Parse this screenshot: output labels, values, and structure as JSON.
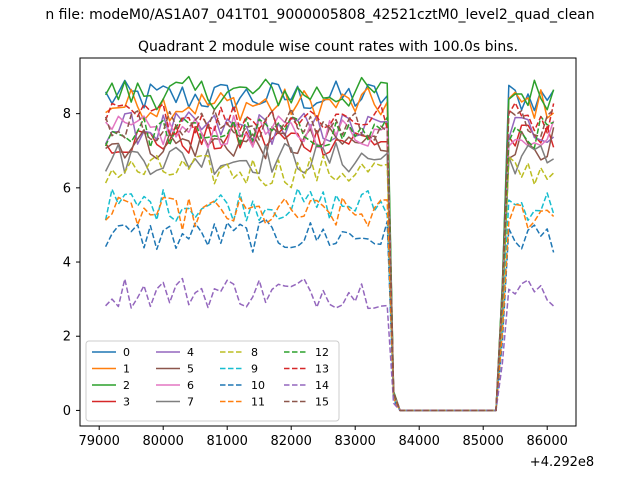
{
  "figure": {
    "suptitle": "n file: modeM0/AS1A07_041T01_9000005808_42521cztM0_level2_quad_clean",
    "x_offset_label": "+4.292e8"
  },
  "chart_data": {
    "type": "line",
    "title": "Quadrant 2 module wise count rates with 100.0s bins.",
    "xlabel": "",
    "ylabel": "",
    "xlim": [
      78700,
      86450
    ],
    "ylim": [
      -0.42,
      9.5
    ],
    "xticks": [
      "79000",
      "80000",
      "81000",
      "82000",
      "83000",
      "84000",
      "85000",
      "86000"
    ],
    "yticks": [
      "0",
      "2",
      "4",
      "6",
      "8"
    ],
    "grid": false,
    "legend": {
      "placement": "lower-left",
      "columns": 4
    },
    "series": [
      {
        "name": "0",
        "color": "#1f77b4",
        "dash": "solid",
        "level": 8.45
      },
      {
        "name": "1",
        "color": "#ff7f0e",
        "dash": "solid",
        "level": 8.25
      },
      {
        "name": "2",
        "color": "#2ca02c",
        "dash": "solid",
        "level": 8.55
      },
      {
        "name": "3",
        "color": "#d62728",
        "dash": "solid",
        "level": 7.3
      },
      {
        "name": "4",
        "color": "#9467bd",
        "dash": "solid",
        "level": 7.6
      },
      {
        "name": "5",
        "color": "#8c564b",
        "dash": "solid",
        "level": 7.2
      },
      {
        "name": "6",
        "color": "#e377c2",
        "dash": "solid",
        "level": 7.5
      },
      {
        "name": "7",
        "color": "#7f7f7f",
        "dash": "solid",
        "level": 6.8
      },
      {
        "name": "8",
        "color": "#bcbd22",
        "dash": "dashed",
        "level": 6.45
      },
      {
        "name": "9",
        "color": "#17becf",
        "dash": "dashed",
        "level": 5.55
      },
      {
        "name": "10",
        "color": "#1f77b4",
        "dash": "dashed",
        "level": 4.7
      },
      {
        "name": "11",
        "color": "#ff7f0e",
        "dash": "dashed",
        "level": 5.3
      },
      {
        "name": "12",
        "color": "#2ca02c",
        "dash": "dashed",
        "level": 7.5
      },
      {
        "name": "13",
        "color": "#d62728",
        "dash": "dashed",
        "level": 7.9
      },
      {
        "name": "14",
        "color": "#9467bd",
        "dash": "dashed",
        "level": 3.2
      },
      {
        "name": "15",
        "color": "#8c564b",
        "dash": "dashed",
        "level": 7.7
      }
    ],
    "time_axis": {
      "start": 79100,
      "step": 100,
      "end": 86100,
      "gap_start": 83700,
      "gap_end": 85200,
      "gap_value": 0
    }
  }
}
